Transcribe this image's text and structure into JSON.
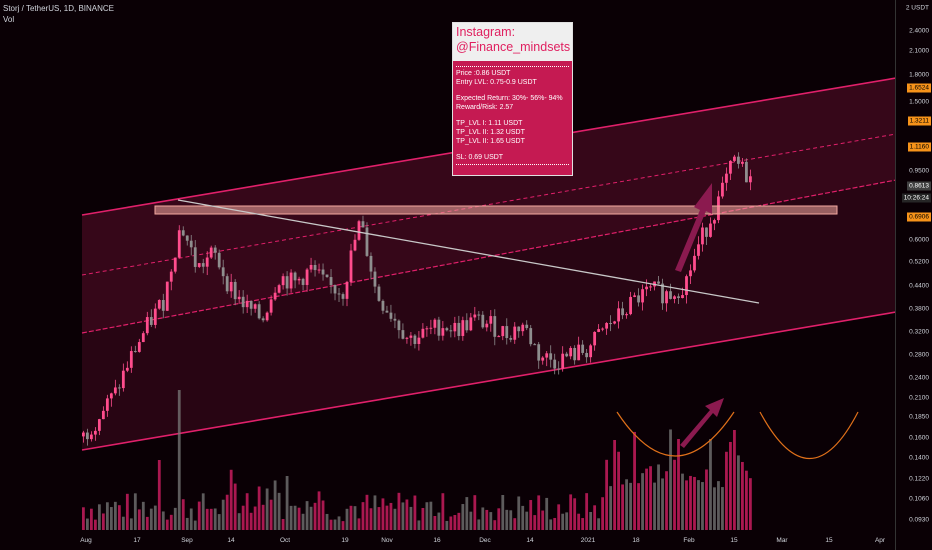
{
  "header": {
    "symbol_line": "Storj / TetherUS, 1D, BINANCE",
    "volume_label": "Vol"
  },
  "info_box": {
    "title_line1": "Instagram:",
    "title_line2": "@Finance_mindsets",
    "price": "Price :0.86 USDT",
    "entry": "Entry LVL: 0.75-0.9 USDT",
    "expected": "Expected Return: 30%- 56%- 94%",
    "rr": "Reward/Risk: 2.57",
    "tp1": "TP_LVL I: 1.11 USDT",
    "tp2": "TP_LVL II: 1.32 USDT",
    "tp3": "TP_LVL II: 1.65 USDT",
    "sl": "SL: 0.69 USDT"
  },
  "price_axis": {
    "labels": [
      "2 USDT",
      "2.4000",
      "2.1000",
      "1.8000",
      "1.5000",
      "0.9500",
      "0.6000",
      "0.5200",
      "0.4400",
      "0.3800",
      "0.3200",
      "0.2800",
      "0.2400",
      "0.2100",
      "0.1850",
      "0.1600",
      "0.1400",
      "0.1220",
      "0.1060",
      "0.0930"
    ],
    "tags": [
      {
        "text": "1.6524",
        "bg": "#f7931a",
        "fg": "#000000"
      },
      {
        "text": "1.3211",
        "bg": "#f7931a",
        "fg": "#000000"
      },
      {
        "text": "1.1160",
        "bg": "#f7931a",
        "fg": "#000000"
      },
      {
        "text": "0.8613",
        "bg": "#404040",
        "fg": "#ffffff"
      },
      {
        "text": "10:26:24",
        "bg": "#262626",
        "fg": "#ffffff"
      },
      {
        "text": "0.6906",
        "bg": "#f7931a",
        "fg": "#000000"
      }
    ]
  },
  "time_axis": [
    "Aug",
    "17",
    "Sep",
    "14",
    "Oct",
    "19",
    "Nov",
    "16",
    "Dec",
    "14",
    "2021",
    "18",
    "Feb",
    "15",
    "Mar",
    "15",
    "Apr"
  ],
  "colors": {
    "background": "#0a0005",
    "channel": "#e0206a",
    "bull_candle": "#ff4d8d",
    "bear_candle": "#8e8e8e",
    "resistance_zone": "#f4a9a0",
    "trendline": "#c8c8c8",
    "arrow": "#8b1a4f",
    "cup_curve": "#e0701a",
    "info_box": "#c51a52"
  },
  "chart_data": {
    "type": "candlestick",
    "series": [
      {
        "name": "STORJUSDT",
        "close_path": [
          0.185,
          0.21,
          0.24,
          0.3,
          0.36,
          0.42,
          0.65,
          0.5,
          0.55,
          0.45,
          0.4,
          0.37,
          0.48,
          0.46,
          0.5,
          0.45,
          0.44,
          0.66,
          0.43,
          0.38,
          0.33,
          0.34,
          0.36,
          0.35,
          0.37,
          0.36,
          0.34,
          0.36,
          0.3,
          0.29,
          0.3,
          0.31,
          0.35,
          0.38,
          0.42,
          0.44,
          0.43,
          0.46,
          0.6,
          0.74,
          0.95,
          0.86
        ]
      }
    ],
    "ylim": [
      0.093,
      2.4
    ],
    "y_scale": "log",
    "annotations": [
      "resistance zone",
      "rising channel",
      "descending trendline",
      "cup pattern on volume"
    ]
  }
}
